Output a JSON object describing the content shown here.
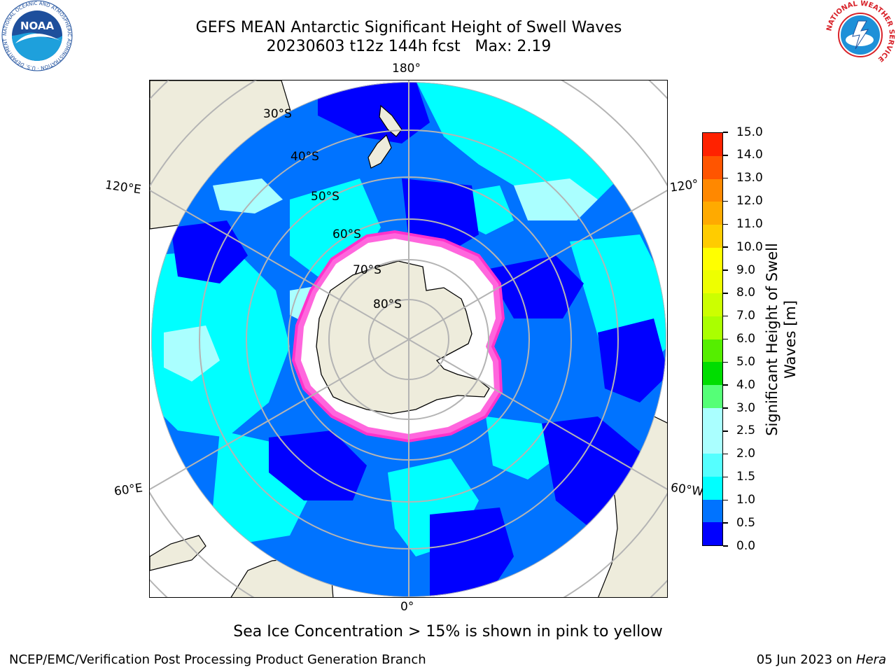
{
  "title": {
    "line1": "GEFS MEAN Antarctic Significant Height of Swell Waves",
    "line2": "20230603 t12z 144h fcst   Max: 2.19"
  },
  "map": {
    "projection": "south-polar-stereographic",
    "longitude_labels": {
      "top": "180°",
      "bottom": "0°",
      "left_upper": "120°E",
      "left_lower": "60°E",
      "right_upper": "120°",
      "right_lower": "60°W"
    },
    "latitude_labels": [
      "30°S",
      "40°S",
      "50°S",
      "60°S",
      "70°S",
      "80°S"
    ],
    "colors": {
      "ocean_fill": "#0073ff",
      "land": "#eeecdc",
      "grid": "#b4b4b4",
      "ice_edge": "#ff33cc"
    }
  },
  "colorbar": {
    "label": "Significant Height of Swell\nWaves [m]",
    "ticks": [
      "0.0",
      "0.5",
      "1.0",
      "1.5",
      "2.0",
      "2.5",
      "3.0",
      "4.0",
      "5.0",
      "6.0",
      "7.0",
      "8.0",
      "9.0",
      "10.0",
      "11.0",
      "12.0",
      "13.0",
      "14.0",
      "15.0"
    ],
    "colors": [
      "#0000ff",
      "#0073ff",
      "#00ffff",
      "#55ffff",
      "#aaffff",
      "#aaffff",
      "#55ff77",
      "#00dd00",
      "#55ee00",
      "#aaff00",
      "#ccff00",
      "#eeff00",
      "#ffff00",
      "#ffcc00",
      "#ffaa00",
      "#ff8800",
      "#ff5500",
      "#ff2200",
      "#ff0000"
    ]
  },
  "footnote": "Sea Ice Concentration > 15% is shown in pink to yellow",
  "credit_left": "NCEP/EMC/Verification Post Processing Product Generation Branch",
  "credit_right_date": "05 Jun 2023 on ",
  "credit_right_host": "Hera",
  "logos": {
    "noaa_text": "NOAA",
    "noaa_ring": "NATIONAL OCEANIC AND ATMOSPHERIC ADMINISTRATION · U.S. DEPARTMENT OF COMMERCE",
    "nws_ring": "NATIONAL WEATHER SERVICE"
  }
}
